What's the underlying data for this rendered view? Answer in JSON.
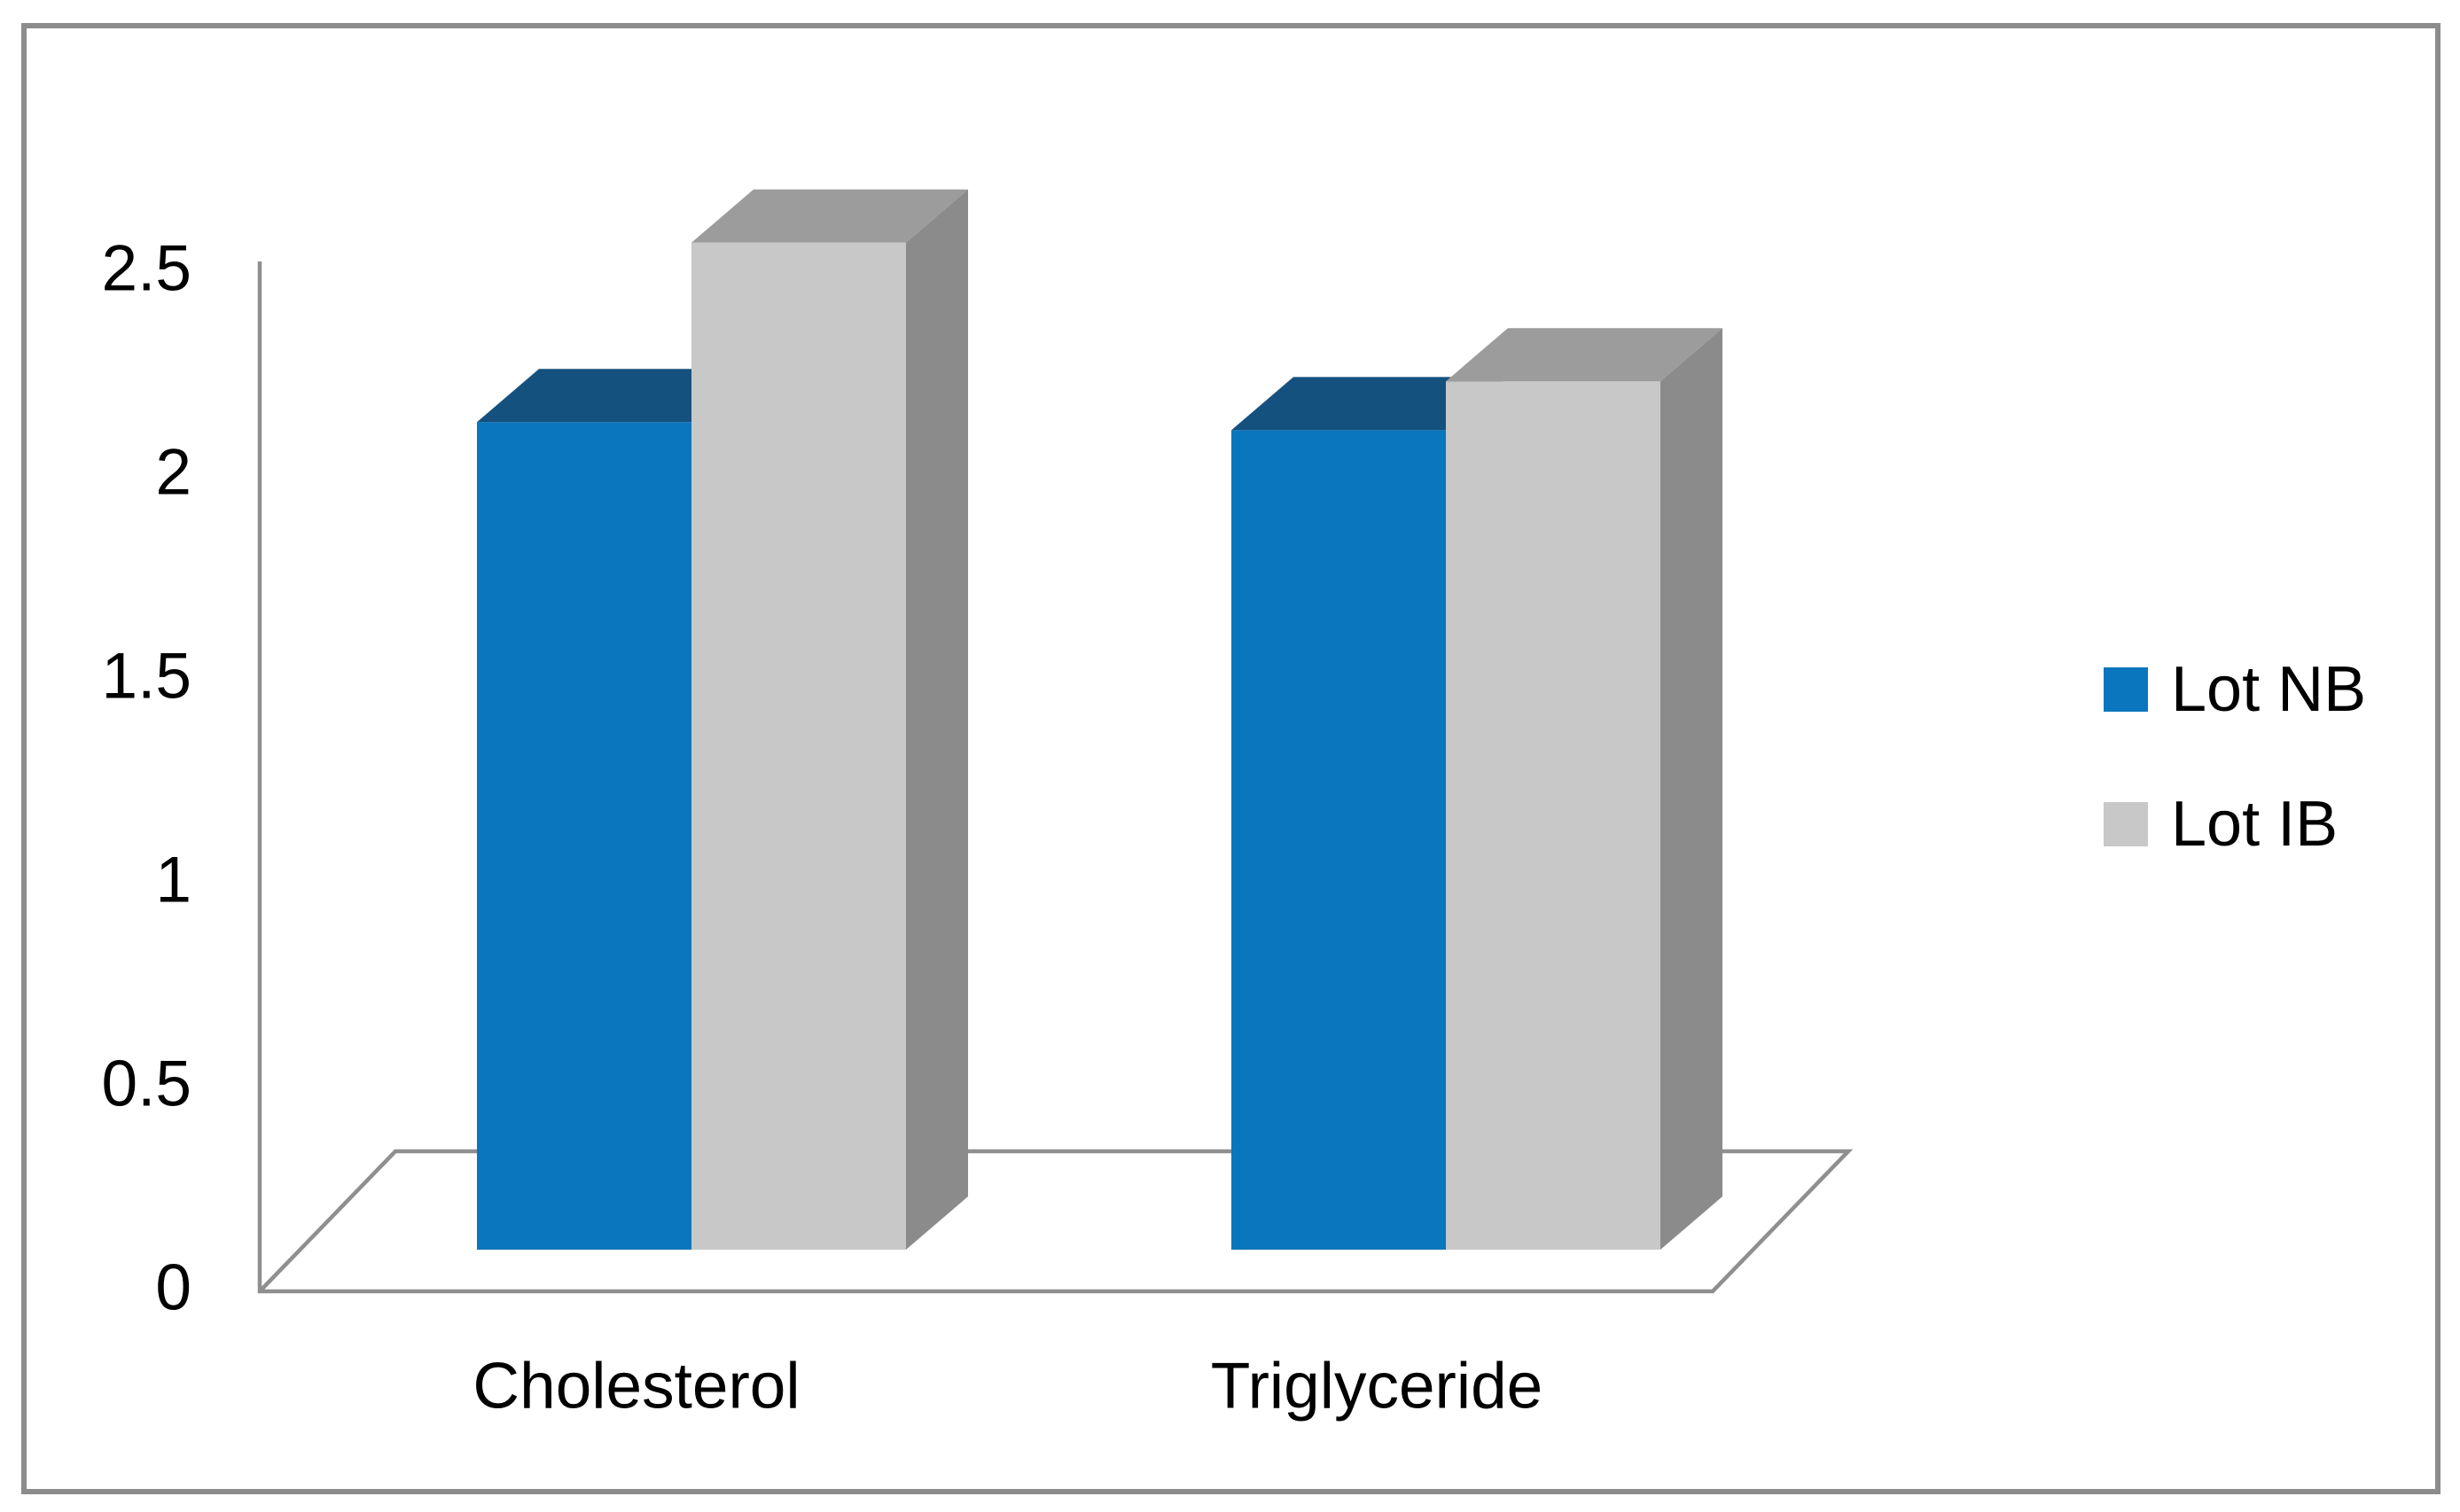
{
  "chart_data": {
    "type": "bar",
    "style": "3d-clustered-column",
    "title": "",
    "categories": [
      "Cholesterol",
      "Triglyceride"
    ],
    "series": [
      {
        "name": "Lot NB",
        "values": [
          2.03,
          2.01
        ],
        "color": "#0a76bd",
        "color_top": "#15517f"
      },
      {
        "name": "Lot IB",
        "values": [
          2.47,
          2.13
        ],
        "color": "#c8c8c8",
        "color_top": "#9c9c9c",
        "color_side": "#8b8b8b"
      }
    ],
    "xlabel": "",
    "ylabel": "",
    "ylim": [
      0,
      2.5
    ],
    "yticks": [
      0,
      0.5,
      1,
      1.5,
      2,
      2.5
    ],
    "ytick_labels": [
      "0",
      "0.5",
      "1",
      "1.5",
      "2",
      "2.5"
    ],
    "grid": false,
    "legend_position": "center-right",
    "legend": [
      "Lot NB",
      "Lot IB"
    ],
    "axis_color": "#8f8f8f",
    "text_color": "#000000",
    "background": "#ffffff",
    "border_color": "#8c8c8c"
  }
}
